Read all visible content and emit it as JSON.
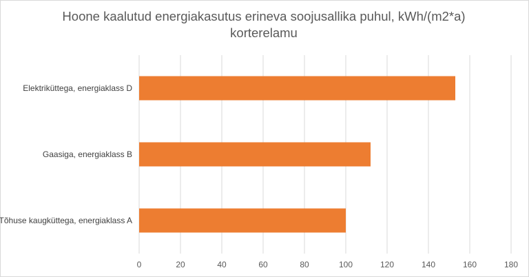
{
  "chart_data": {
    "type": "bar",
    "orientation": "horizontal",
    "title_line1": "Hoone kaalutud energiakasutus erineva soojusallika puhul, kWh/(m2*a)",
    "title_line2": "korterelamu",
    "categories": [
      "Elektriküttega, energiaklass D",
      "Gaasiga, energiaklass B",
      "Tõhuse kaugküttega, energiaklass A"
    ],
    "values": [
      153,
      112,
      100
    ],
    "xlim": [
      0,
      180
    ],
    "xticks": [
      0,
      20,
      40,
      60,
      80,
      100,
      120,
      140,
      160,
      180
    ],
    "grid": true,
    "bar_color": "#ED7D31",
    "grid_color": "#d9d9d9"
  }
}
